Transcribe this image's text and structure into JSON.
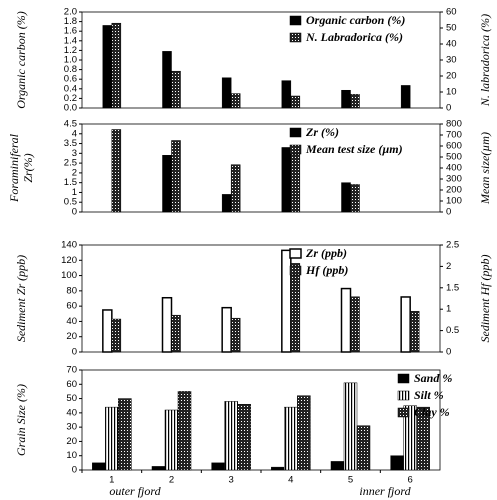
{
  "chart_data": [
    {
      "type": "bar",
      "ylabel": [
        "Organic carbon (%)"
      ],
      "y2label": "N. labradorica (%)",
      "legend": "upper right",
      "ylim": [
        0,
        2
      ],
      "yticks": [
        {
          "value": 0,
          "label": "0.0"
        },
        0.2,
        0.4,
        0.6,
        0.8,
        {
          "value": 1,
          "label": "1.0"
        },
        1.2,
        1.4,
        1.6,
        1.8,
        {
          "value": 2,
          "label": "2.0"
        }
      ],
      "y2lim": [
        0,
        60
      ],
      "y2ticks": [
        0,
        10,
        20,
        30,
        40,
        50,
        60
      ],
      "series": [
        {
          "name": "Organic carbon (%)",
          "color": "#000000",
          "style": "solid",
          "values": [
            1.72,
            1.18,
            0.63,
            0.57,
            0.37,
            0.47
          ]
        },
        {
          "name": "N. Labradorica (%)",
          "color": "#000000",
          "style": "dotted",
          "axis": "y2",
          "values": [
            53,
            23,
            9,
            7.5,
            8.5,
            null
          ]
        }
      ]
    },
    {
      "type": "bar",
      "ylabel": [
        "Foraminiferal",
        "Zr(%)"
      ],
      "y2label": "Mean size(µm)",
      "legend": "upper right",
      "ylim": [
        0,
        4.5
      ],
      "yticks": [
        0,
        0.5,
        1,
        1.5,
        2,
        2.5,
        3,
        3.5,
        4,
        4.5
      ],
      "y2lim": [
        0,
        800
      ],
      "y2ticks": [
        0,
        100,
        200,
        300,
        400,
        500,
        600,
        700,
        800
      ],
      "series": [
        {
          "name": "Zr (%)",
          "color": "#000000",
          "style": "solid",
          "values": [
            null,
            2.9,
            0.9,
            3.3,
            1.5,
            null
          ]
        },
        {
          "name": "Mean test size (µm)",
          "color": "#000000",
          "style": "dotted",
          "axis": "y2",
          "values": [
            750,
            650,
            430,
            530,
            250,
            null
          ]
        }
      ]
    },
    {
      "type": "bar",
      "ylabel": [
        "Sediment Zr (ppb)"
      ],
      "y2label": "Sediment Hf (ppb)",
      "legend": "upper right",
      "ylim": [
        0,
        140
      ],
      "yticks": [
        0,
        20,
        40,
        60,
        80,
        100,
        120,
        140
      ],
      "y2lim": [
        0,
        2.5
      ],
      "y2ticks": [
        0,
        0.5,
        1,
        1.5,
        2,
        2.5
      ],
      "series": [
        {
          "name": "Zr (ppb)",
          "color": "#000000",
          "style": "open",
          "values": [
            55,
            71,
            58,
            133,
            83,
            72
          ]
        },
        {
          "name": "Hf (ppb)",
          "color": "#000000",
          "style": "dotted",
          "axis": "y2",
          "values": [
            0.77,
            0.86,
            0.79,
            2.07,
            1.29,
            0.95
          ]
        }
      ]
    },
    {
      "type": "bar",
      "ylabel": [
        "Grain Size (%)"
      ],
      "legend": "upper right",
      "categories": [
        "1",
        "2",
        "3",
        "4",
        "5",
        "6"
      ],
      "ylim": [
        0,
        70
      ],
      "yticks": [
        0,
        10,
        20,
        30,
        40,
        50,
        60,
        70
      ],
      "annotations": [
        "outer fjord",
        "inner fjord"
      ],
      "series": [
        {
          "name": "Sand %",
          "color": "#000000",
          "style": "solid",
          "values": [
            5,
            2.5,
            5,
            2,
            6,
            10
          ]
        },
        {
          "name": "Silt %",
          "color": "#000000",
          "style": "striped",
          "values": [
            44,
            42,
            48,
            44,
            61,
            45
          ]
        },
        {
          "name": "Clay %",
          "color": "#000000",
          "style": "dotted",
          "values": [
            50,
            55,
            46,
            52,
            31,
            44
          ]
        }
      ]
    }
  ]
}
